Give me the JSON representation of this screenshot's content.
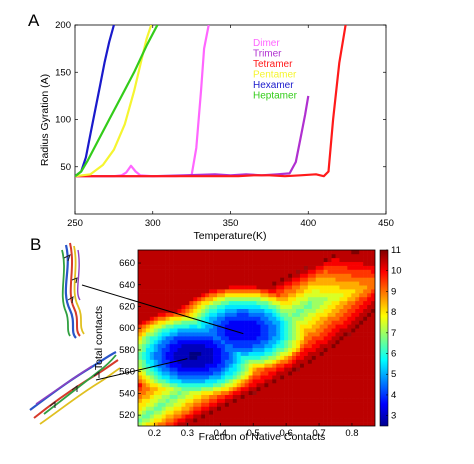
{
  "panels": {
    "a_letter": "A",
    "b_letter": "B"
  },
  "chart_data": [
    {
      "type": "line",
      "xlabel": "Temperature(K)",
      "ylabel": "Radius Gyration (A)",
      "xlim": [
        250,
        450
      ],
      "ylim": [
        0,
        200
      ],
      "xticks": [
        250,
        300,
        350,
        400,
        450
      ],
      "yticks": [
        50,
        100,
        150,
        200
      ],
      "legend_position": "upper-middle",
      "series": [
        {
          "name": "Dimer",
          "color": "#ff66ff",
          "x": [
            250,
            275,
            280,
            283,
            286,
            289,
            292,
            300,
            315,
            325,
            328,
            331,
            333,
            336
          ],
          "y": [
            40,
            40,
            41,
            44,
            51,
            45,
            41,
            40,
            40,
            41,
            70,
            130,
            175,
            200
          ]
        },
        {
          "name": "Trimer",
          "color": "#b030d0",
          "x": [
            250,
            300,
            320,
            340,
            350,
            360,
            370,
            380,
            388,
            392,
            395,
            398,
            400
          ],
          "y": [
            40,
            40,
            41,
            42,
            41,
            42,
            41,
            42,
            43,
            55,
            80,
            105,
            125
          ]
        },
        {
          "name": "Tetramer",
          "color": "#ff1a1a",
          "x": [
            250,
            300,
            340,
            355,
            365,
            375,
            385,
            395,
            405,
            410,
            413,
            416,
            420,
            424
          ],
          "y": [
            40,
            40,
            40,
            40,
            41,
            41,
            40,
            41,
            42,
            40,
            45,
            100,
            160,
            200
          ]
        },
        {
          "name": "Pentamer",
          "color": "#f5f530",
          "x": [
            250,
            260,
            268,
            275,
            282,
            288,
            293,
            296,
            299
          ],
          "y": [
            40,
            42,
            52,
            68,
            95,
            130,
            165,
            185,
            200
          ]
        },
        {
          "name": "Hexamer",
          "color": "#1a1acc",
          "x": [
            250,
            254,
            257,
            260,
            263,
            266,
            269,
            272,
            275
          ],
          "y": [
            40,
            45,
            60,
            85,
            110,
            135,
            160,
            182,
            200
          ]
        },
        {
          "name": "Heptamer",
          "color": "#33cc1a",
          "x": [
            250,
            254,
            258,
            265,
            272,
            280,
            288,
            296,
            303
          ],
          "y": [
            40,
            45,
            56,
            78,
            100,
            125,
            150,
            178,
            200
          ]
        }
      ]
    },
    {
      "type": "heatmap",
      "xlabel": "Fraction of Native Contacts",
      "ylabel": "Total contacts",
      "xlim": [
        0.15,
        0.87
      ],
      "ylim": [
        510,
        672
      ],
      "xticks": [
        0.2,
        0.3,
        0.4,
        0.5,
        0.6,
        0.7,
        0.8
      ],
      "yticks": [
        520,
        540,
        560,
        580,
        600,
        620,
        640,
        660
      ],
      "colorbar": {
        "min": 2.5,
        "max": 11,
        "ticks": [
          3,
          4,
          5,
          6,
          7,
          8,
          9,
          10,
          11
        ]
      },
      "background_value": 11,
      "basins": [
        {
          "x": 0.32,
          "y": 575,
          "depth": 2.7
        },
        {
          "x": 0.47,
          "y": 598,
          "depth": 3.3
        }
      ],
      "ridge": {
        "start": [
          0.2,
          525
        ],
        "end": [
          0.8,
          648
        ]
      },
      "structure_pointers": [
        {
          "structure": "extended",
          "target": [
            0.47,
            595
          ]
        },
        {
          "structure": "compact",
          "target": [
            0.3,
            572
          ]
        }
      ]
    }
  ]
}
